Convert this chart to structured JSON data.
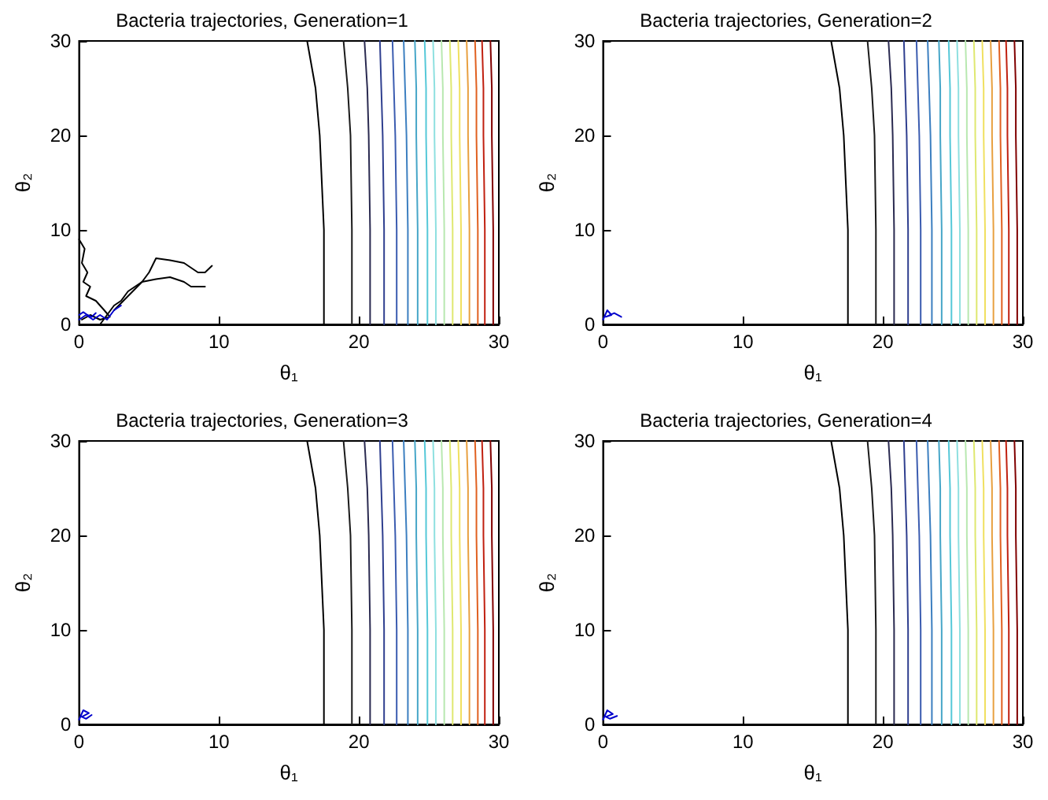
{
  "chart_data": [
    {
      "type": "line",
      "title": "Bacteria trajectories, Generation=1",
      "xlabel": "θ₁",
      "ylabel": "θ₂",
      "xlim": [
        0,
        30
      ],
      "ylim": [
        0,
        30
      ],
      "xticks": [
        0,
        10,
        20,
        30
      ],
      "yticks": [
        0,
        10,
        20,
        30
      ],
      "grid": false,
      "marker": "none",
      "line_style": "solid",
      "series": [
        {
          "color": "#000000",
          "x": [
            17.5,
            17.5,
            17.2,
            16.9,
            16.3
          ],
          "values": [
            0,
            10,
            20,
            25,
            30
          ]
        },
        {
          "color": "#1a1a1a",
          "x": [
            19.5,
            19.5,
            19.4,
            19.2,
            18.9
          ],
          "values": [
            0,
            10,
            20,
            25,
            30
          ]
        },
        {
          "color": "#2a2a50",
          "x": [
            20.8,
            20.8,
            20.7,
            20.6,
            20.4
          ],
          "values": [
            0,
            10,
            20,
            25,
            30
          ]
        },
        {
          "color": "#2f3f8f",
          "x": [
            21.8,
            21.8,
            21.7,
            21.6,
            21.5
          ],
          "values": [
            0,
            10,
            20,
            25,
            30
          ]
        },
        {
          "color": "#3b5cb0",
          "x": [
            22.7,
            22.7,
            22.6,
            22.5,
            22.4
          ],
          "values": [
            0,
            10,
            20,
            25,
            30
          ]
        },
        {
          "color": "#3c7fc0",
          "x": [
            23.5,
            23.5,
            23.4,
            23.3,
            23.2
          ],
          "values": [
            0,
            10,
            20,
            25,
            30
          ]
        },
        {
          "color": "#46a6c8",
          "x": [
            24.2,
            24.2,
            24.1,
            24.1,
            24.0
          ],
          "values": [
            0,
            10,
            20,
            25,
            30
          ]
        },
        {
          "color": "#55c8d8",
          "x": [
            24.9,
            24.9,
            24.8,
            24.8,
            24.7
          ],
          "values": [
            0,
            10,
            20,
            25,
            30
          ]
        },
        {
          "color": "#8ee0e0",
          "x": [
            25.5,
            25.5,
            25.4,
            25.4,
            25.3
          ],
          "values": [
            0,
            10,
            20,
            25,
            30
          ]
        },
        {
          "color": "#b8e8b0",
          "x": [
            26.1,
            26.1,
            26.0,
            26.0,
            25.9
          ],
          "values": [
            0,
            10,
            20,
            25,
            30
          ]
        },
        {
          "color": "#dfe870",
          "x": [
            26.7,
            26.7,
            26.6,
            26.6,
            26.5
          ],
          "values": [
            0,
            10,
            20,
            25,
            30
          ]
        },
        {
          "color": "#f0e060",
          "x": [
            27.3,
            27.3,
            27.2,
            27.2,
            27.1
          ],
          "values": [
            0,
            10,
            20,
            25,
            30
          ]
        },
        {
          "color": "#e8a040",
          "x": [
            27.9,
            27.9,
            27.8,
            27.8,
            27.7
          ],
          "values": [
            0,
            10,
            20,
            25,
            30
          ]
        },
        {
          "color": "#e06020",
          "x": [
            28.5,
            28.5,
            28.4,
            28.4,
            28.3
          ],
          "values": [
            0,
            10,
            20,
            25,
            30
          ]
        },
        {
          "color": "#c02010",
          "x": [
            29.0,
            29.0,
            28.9,
            28.9,
            28.8
          ],
          "values": [
            0,
            10,
            20,
            25,
            30
          ]
        },
        {
          "color": "#800000",
          "x": [
            29.6,
            29.6,
            29.5,
            29.5,
            29.4
          ],
          "values": [
            0,
            10,
            20,
            25,
            30
          ]
        },
        {
          "color": "#000000",
          "x": [
            0,
            0.4,
            0.2,
            0.6,
            0.3,
            0.8,
            0.5,
            1.2,
            1.8,
            2.2,
            1.5,
            0.8,
            0.2
          ],
          "values": [
            9,
            8,
            6.5,
            5.5,
            4.5,
            4,
            3,
            2.5,
            1.5,
            0.8,
            0.5,
            1,
            0.5
          ]
        },
        {
          "color": "#000000",
          "x": [
            1.5,
            2,
            2.5,
            3,
            3.5,
            4,
            4.5,
            5,
            5.5,
            6.5,
            7.5,
            8.5,
            9,
            9.5
          ],
          "values": [
            0,
            1,
            2,
            2.5,
            3.5,
            4,
            4.5,
            5.5,
            7,
            6.8,
            6.5,
            5.5,
            5.5,
            6.2
          ]
        },
        {
          "color": "#000000",
          "x": [
            2.5,
            3.5,
            4.5,
            5.5,
            6.5,
            7.5,
            8,
            9
          ],
          "values": [
            1.5,
            3,
            4.5,
            4.8,
            5,
            4.5,
            4,
            4
          ]
        },
        {
          "color": "#0000cc",
          "x": [
            0,
            0.5,
            1,
            1.5,
            2,
            2.5,
            3
          ],
          "values": [
            0.5,
            1,
            0.5,
            1,
            0.5,
            1.5,
            2
          ]
        },
        {
          "color": "#0000cc",
          "x": [
            0,
            0.3,
            0.6,
            0.9,
            1.2
          ],
          "values": [
            1,
            1.3,
            1,
            0.8,
            1.2
          ]
        }
      ]
    },
    {
      "type": "line",
      "title": "Bacteria trajectories, Generation=2",
      "xlabel": "θ₁",
      "ylabel": "θ₂",
      "xlim": [
        0,
        30
      ],
      "ylim": [
        0,
        30
      ],
      "xticks": [
        0,
        10,
        20,
        30
      ],
      "yticks": [
        0,
        10,
        20,
        30
      ],
      "grid": false,
      "marker": "none",
      "line_style": "solid",
      "series": [
        {
          "color": "#000000",
          "x": [
            17.5,
            17.5,
            17.2,
            16.9,
            16.3
          ],
          "values": [
            0,
            10,
            20,
            25,
            30
          ]
        },
        {
          "color": "#1a1a1a",
          "x": [
            19.5,
            19.5,
            19.4,
            19.2,
            18.9
          ],
          "values": [
            0,
            10,
            20,
            25,
            30
          ]
        },
        {
          "color": "#2a2a50",
          "x": [
            20.8,
            20.8,
            20.7,
            20.6,
            20.4
          ],
          "values": [
            0,
            10,
            20,
            25,
            30
          ]
        },
        {
          "color": "#2f3f8f",
          "x": [
            21.8,
            21.8,
            21.7,
            21.6,
            21.5
          ],
          "values": [
            0,
            10,
            20,
            25,
            30
          ]
        },
        {
          "color": "#3b5cb0",
          "x": [
            22.7,
            22.7,
            22.6,
            22.5,
            22.4
          ],
          "values": [
            0,
            10,
            20,
            25,
            30
          ]
        },
        {
          "color": "#3c7fc0",
          "x": [
            23.5,
            23.5,
            23.4,
            23.3,
            23.2
          ],
          "values": [
            0,
            10,
            20,
            25,
            30
          ]
        },
        {
          "color": "#46a6c8",
          "x": [
            24.2,
            24.2,
            24.1,
            24.1,
            24.0
          ],
          "values": [
            0,
            10,
            20,
            25,
            30
          ]
        },
        {
          "color": "#55c8d8",
          "x": [
            24.9,
            24.9,
            24.8,
            24.8,
            24.7
          ],
          "values": [
            0,
            10,
            20,
            25,
            30
          ]
        },
        {
          "color": "#8ee0e0",
          "x": [
            25.5,
            25.5,
            25.4,
            25.4,
            25.3
          ],
          "values": [
            0,
            10,
            20,
            25,
            30
          ]
        },
        {
          "color": "#b8e8b0",
          "x": [
            26.1,
            26.1,
            26.0,
            26.0,
            25.9
          ],
          "values": [
            0,
            10,
            20,
            25,
            30
          ]
        },
        {
          "color": "#dfe870",
          "x": [
            26.7,
            26.7,
            26.6,
            26.6,
            26.5
          ],
          "values": [
            0,
            10,
            20,
            25,
            30
          ]
        },
        {
          "color": "#f0e060",
          "x": [
            27.3,
            27.3,
            27.2,
            27.2,
            27.1
          ],
          "values": [
            0,
            10,
            20,
            25,
            30
          ]
        },
        {
          "color": "#e8a040",
          "x": [
            27.9,
            27.9,
            27.8,
            27.8,
            27.7
          ],
          "values": [
            0,
            10,
            20,
            25,
            30
          ]
        },
        {
          "color": "#e06020",
          "x": [
            28.5,
            28.5,
            28.4,
            28.4,
            28.3
          ],
          "values": [
            0,
            10,
            20,
            25,
            30
          ]
        },
        {
          "color": "#c02010",
          "x": [
            29.0,
            29.0,
            28.9,
            28.9,
            28.8
          ],
          "values": [
            0,
            10,
            20,
            25,
            30
          ]
        },
        {
          "color": "#800000",
          "x": [
            29.6,
            29.6,
            29.5,
            29.5,
            29.4
          ],
          "values": [
            0,
            10,
            20,
            25,
            30
          ]
        },
        {
          "color": "#0000cc",
          "x": [
            0,
            0.3,
            0.6,
            0.2,
            0.8,
            1.3
          ],
          "values": [
            0.5,
            1.5,
            1,
            0.8,
            1.2,
            0.8
          ]
        }
      ]
    },
    {
      "type": "line",
      "title": "Bacteria trajectories, Generation=3",
      "xlabel": "θ₁",
      "ylabel": "θ₂",
      "xlim": [
        0,
        30
      ],
      "ylim": [
        0,
        30
      ],
      "xticks": [
        0,
        10,
        20,
        30
      ],
      "yticks": [
        0,
        10,
        20,
        30
      ],
      "grid": false,
      "marker": "none",
      "line_style": "solid",
      "series": [
        {
          "color": "#000000",
          "x": [
            17.5,
            17.5,
            17.2,
            16.9,
            16.3
          ],
          "values": [
            0,
            10,
            20,
            25,
            30
          ]
        },
        {
          "color": "#1a1a1a",
          "x": [
            19.5,
            19.5,
            19.4,
            19.2,
            18.9
          ],
          "values": [
            0,
            10,
            20,
            25,
            30
          ]
        },
        {
          "color": "#2a2a50",
          "x": [
            20.8,
            20.8,
            20.7,
            20.6,
            20.4
          ],
          "values": [
            0,
            10,
            20,
            25,
            30
          ]
        },
        {
          "color": "#2f3f8f",
          "x": [
            21.8,
            21.8,
            21.7,
            21.6,
            21.5
          ],
          "values": [
            0,
            10,
            20,
            25,
            30
          ]
        },
        {
          "color": "#3b5cb0",
          "x": [
            22.7,
            22.7,
            22.6,
            22.5,
            22.4
          ],
          "values": [
            0,
            10,
            20,
            25,
            30
          ]
        },
        {
          "color": "#3c7fc0",
          "x": [
            23.5,
            23.5,
            23.4,
            23.3,
            23.2
          ],
          "values": [
            0,
            10,
            20,
            25,
            30
          ]
        },
        {
          "color": "#46a6c8",
          "x": [
            24.2,
            24.2,
            24.1,
            24.1,
            24.0
          ],
          "values": [
            0,
            10,
            20,
            25,
            30
          ]
        },
        {
          "color": "#55c8d8",
          "x": [
            24.9,
            24.9,
            24.8,
            24.8,
            24.7
          ],
          "values": [
            0,
            10,
            20,
            25,
            30
          ]
        },
        {
          "color": "#8ee0e0",
          "x": [
            25.5,
            25.5,
            25.4,
            25.4,
            25.3
          ],
          "values": [
            0,
            10,
            20,
            25,
            30
          ]
        },
        {
          "color": "#b8e8b0",
          "x": [
            26.1,
            26.1,
            26.0,
            26.0,
            25.9
          ],
          "values": [
            0,
            10,
            20,
            25,
            30
          ]
        },
        {
          "color": "#dfe870",
          "x": [
            26.7,
            26.7,
            26.6,
            26.6,
            26.5
          ],
          "values": [
            0,
            10,
            20,
            25,
            30
          ]
        },
        {
          "color": "#f0e060",
          "x": [
            27.3,
            27.3,
            27.2,
            27.2,
            27.1
          ],
          "values": [
            0,
            10,
            20,
            25,
            30
          ]
        },
        {
          "color": "#e8a040",
          "x": [
            27.9,
            27.9,
            27.8,
            27.8,
            27.7
          ],
          "values": [
            0,
            10,
            20,
            25,
            30
          ]
        },
        {
          "color": "#e06020",
          "x": [
            28.5,
            28.5,
            28.4,
            28.4,
            28.3
          ],
          "values": [
            0,
            10,
            20,
            25,
            30
          ]
        },
        {
          "color": "#c02010",
          "x": [
            29.0,
            29.0,
            28.9,
            28.9,
            28.8
          ],
          "values": [
            0,
            10,
            20,
            25,
            30
          ]
        },
        {
          "color": "#800000",
          "x": [
            29.6,
            29.6,
            29.5,
            29.5,
            29.4
          ],
          "values": [
            0,
            10,
            20,
            25,
            30
          ]
        },
        {
          "color": "#0000cc",
          "x": [
            0,
            0.3,
            0.7,
            0.2,
            0.5,
            0.9
          ],
          "values": [
            0.5,
            1.5,
            1.2,
            0.8,
            0.6,
            1
          ]
        }
      ]
    },
    {
      "type": "line",
      "title": "Bacteria trajectories, Generation=4",
      "xlabel": "θ₁",
      "ylabel": "θ₂",
      "xlim": [
        0,
        30
      ],
      "ylim": [
        0,
        30
      ],
      "xticks": [
        0,
        10,
        20,
        30
      ],
      "yticks": [
        0,
        10,
        20,
        30
      ],
      "grid": false,
      "marker": "none",
      "line_style": "solid",
      "series": [
        {
          "color": "#000000",
          "x": [
            17.5,
            17.5,
            17.2,
            16.9,
            16.3
          ],
          "values": [
            0,
            10,
            20,
            25,
            30
          ]
        },
        {
          "color": "#1a1a1a",
          "x": [
            19.5,
            19.5,
            19.4,
            19.2,
            18.9
          ],
          "values": [
            0,
            10,
            20,
            25,
            30
          ]
        },
        {
          "color": "#2a2a50",
          "x": [
            20.8,
            20.8,
            20.7,
            20.6,
            20.4
          ],
          "values": [
            0,
            10,
            20,
            25,
            30
          ]
        },
        {
          "color": "#2f3f8f",
          "x": [
            21.8,
            21.8,
            21.7,
            21.6,
            21.5
          ],
          "values": [
            0,
            10,
            20,
            25,
            30
          ]
        },
        {
          "color": "#3b5cb0",
          "x": [
            22.7,
            22.7,
            22.6,
            22.5,
            22.4
          ],
          "values": [
            0,
            10,
            20,
            25,
            30
          ]
        },
        {
          "color": "#3c7fc0",
          "x": [
            23.5,
            23.5,
            23.4,
            23.3,
            23.2
          ],
          "values": [
            0,
            10,
            20,
            25,
            30
          ]
        },
        {
          "color": "#46a6c8",
          "x": [
            24.2,
            24.2,
            24.1,
            24.1,
            24.0
          ],
          "values": [
            0,
            10,
            20,
            25,
            30
          ]
        },
        {
          "color": "#55c8d8",
          "x": [
            24.9,
            24.9,
            24.8,
            24.8,
            24.7
          ],
          "values": [
            0,
            10,
            20,
            25,
            30
          ]
        },
        {
          "color": "#8ee0e0",
          "x": [
            25.5,
            25.5,
            25.4,
            25.4,
            25.3
          ],
          "values": [
            0,
            10,
            20,
            25,
            30
          ]
        },
        {
          "color": "#b8e8b0",
          "x": [
            26.1,
            26.1,
            26.0,
            26.0,
            25.9
          ],
          "values": [
            0,
            10,
            20,
            25,
            30
          ]
        },
        {
          "color": "#dfe870",
          "x": [
            26.7,
            26.7,
            26.6,
            26.6,
            26.5
          ],
          "values": [
            0,
            10,
            20,
            25,
            30
          ]
        },
        {
          "color": "#f0e060",
          "x": [
            27.3,
            27.3,
            27.2,
            27.2,
            27.1
          ],
          "values": [
            0,
            10,
            20,
            25,
            30
          ]
        },
        {
          "color": "#e8a040",
          "x": [
            27.9,
            27.9,
            27.8,
            27.8,
            27.7
          ],
          "values": [
            0,
            10,
            20,
            25,
            30
          ]
        },
        {
          "color": "#e06020",
          "x": [
            28.5,
            28.5,
            28.4,
            28.4,
            28.3
          ],
          "values": [
            0,
            10,
            20,
            25,
            30
          ]
        },
        {
          "color": "#c02010",
          "x": [
            29.0,
            29.0,
            28.9,
            28.9,
            28.8
          ],
          "values": [
            0,
            10,
            20,
            25,
            30
          ]
        },
        {
          "color": "#800000",
          "x": [
            29.6,
            29.6,
            29.5,
            29.5,
            29.4
          ],
          "values": [
            0,
            10,
            20,
            25,
            30
          ]
        },
        {
          "color": "#0000cc",
          "x": [
            0,
            0.3,
            0.7,
            0.2,
            0.5,
            1
          ],
          "values": [
            0.5,
            1.5,
            1.1,
            0.8,
            0.6,
            0.9
          ]
        }
      ]
    }
  ]
}
